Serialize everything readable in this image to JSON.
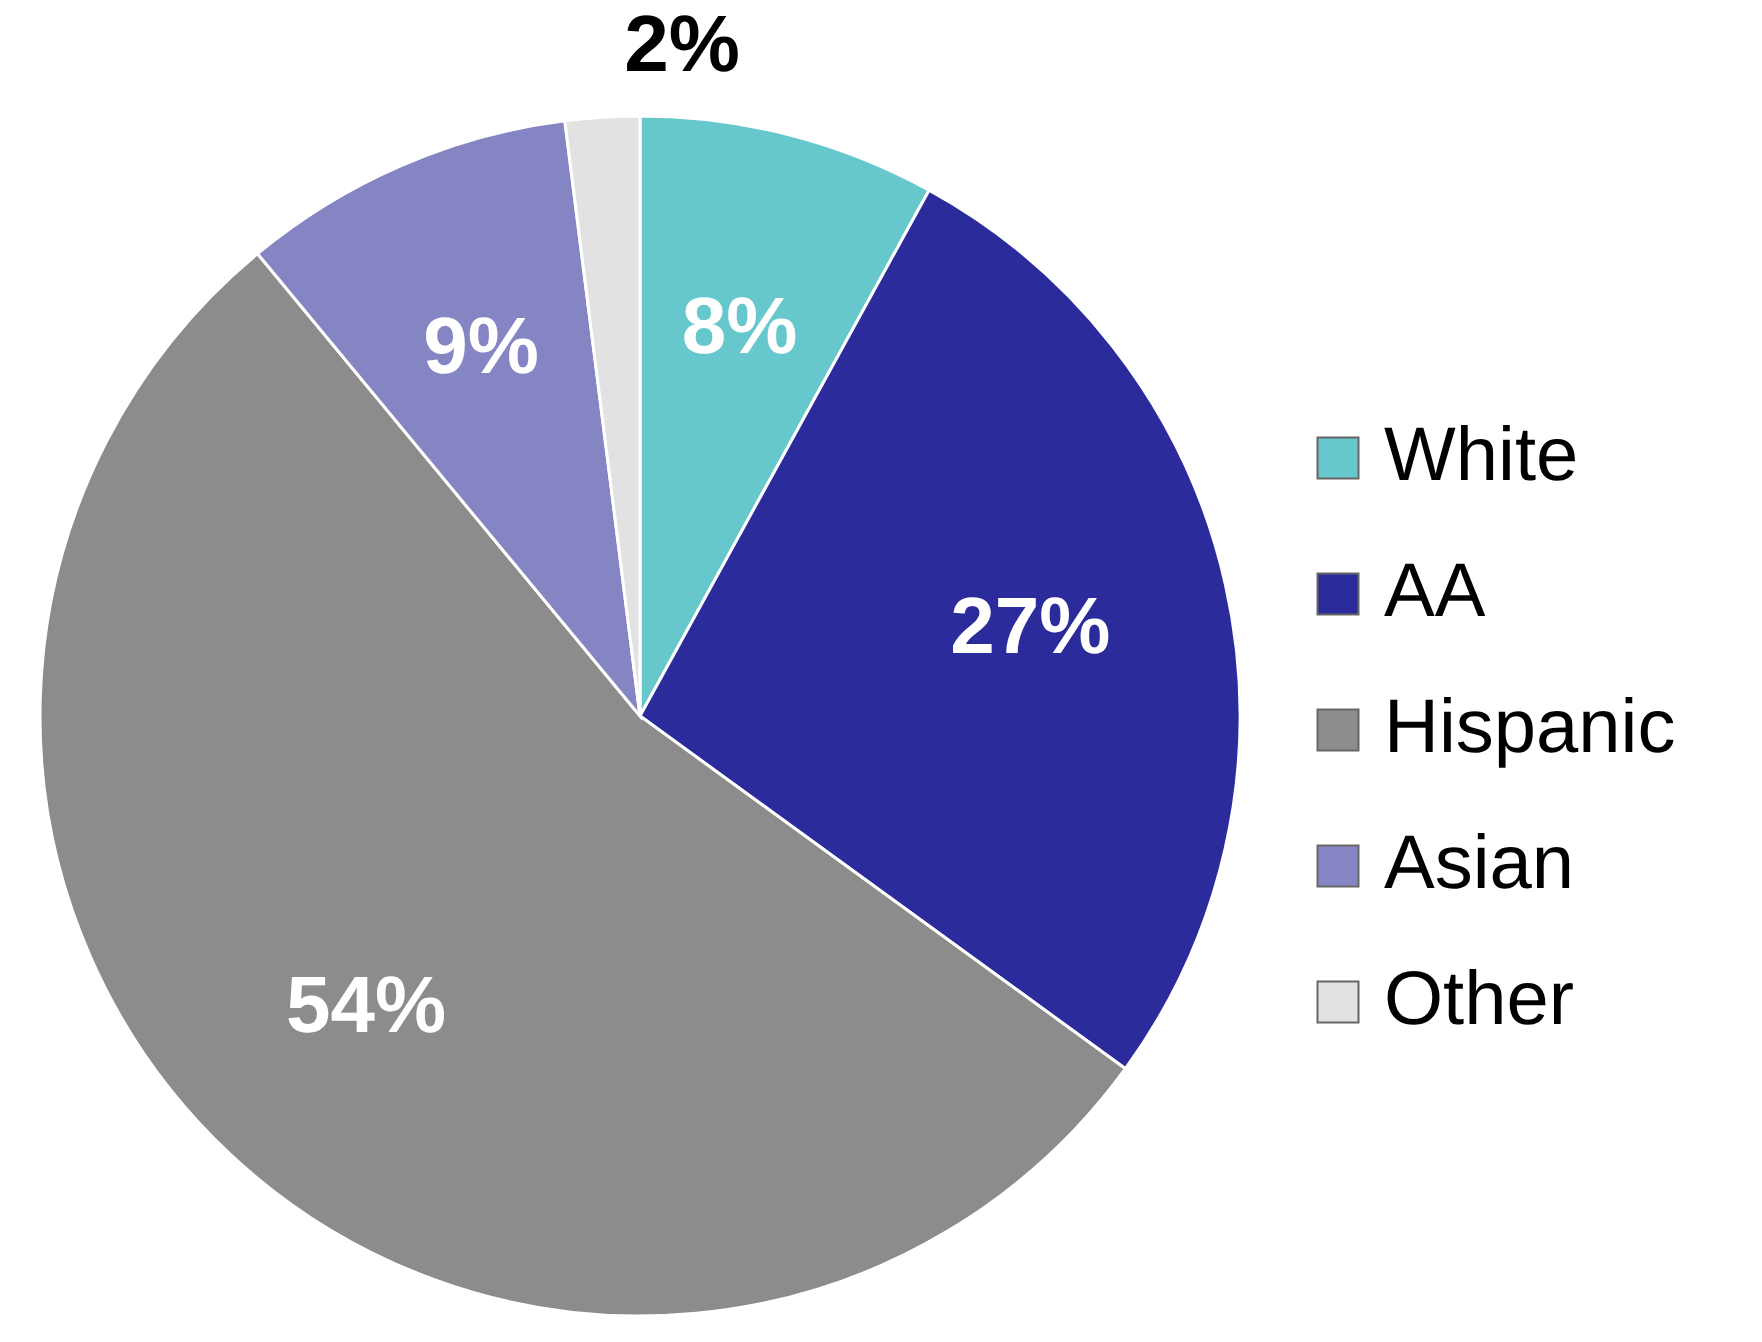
{
  "chart_data": {
    "type": "pie",
    "categories": [
      "White",
      "AA",
      "Hispanic",
      "Asian",
      "Other"
    ],
    "values": [
      8,
      27,
      54,
      9,
      2
    ],
    "colors": [
      "#66c8cc",
      "#2b2b9c",
      "#8c8c8c",
      "#8585c4",
      "#e2e2e2"
    ],
    "value_labels": [
      "8%",
      "27%",
      "54%",
      "9%",
      "2%"
    ],
    "legend": "right"
  }
}
